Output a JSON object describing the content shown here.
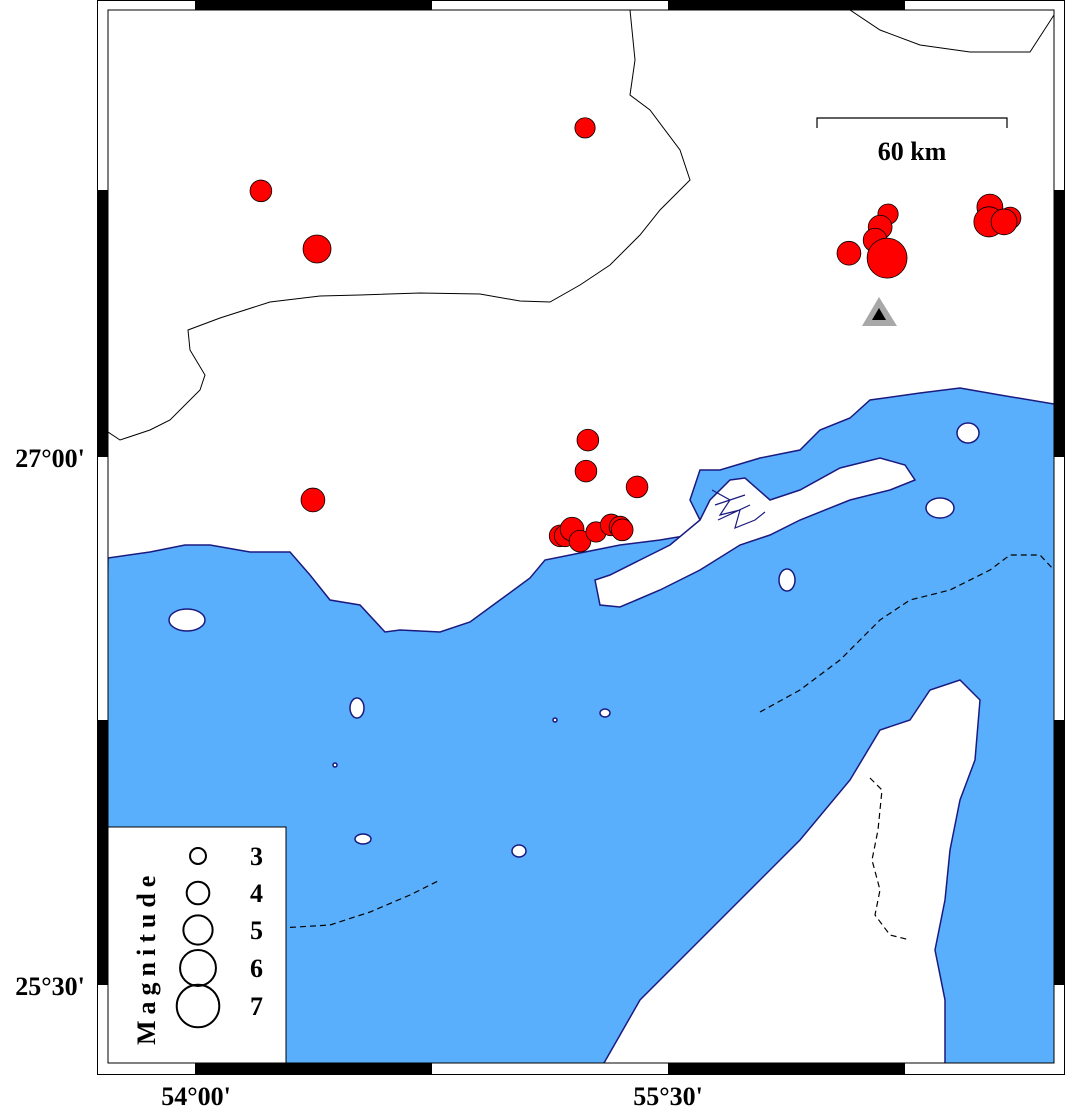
{
  "map": {
    "colors": {
      "water": "#5aaffc",
      "land": "#ffffff",
      "coast": "#1a1a80",
      "event": "#ff0000",
      "station": "#a8a8a8"
    },
    "lat_labels": [
      {
        "lat": 27.0,
        "text": "27°00'"
      },
      {
        "lat": 25.5,
        "text": "25°30'"
      }
    ],
    "lon_labels": [
      {
        "lon": 54.0,
        "text": "54°00'"
      },
      {
        "lon": 55.5,
        "text": "55°30'"
      }
    ],
    "scale_bar": {
      "label": "60 km"
    },
    "station": {
      "lon": 56.221,
      "lat": 27.403,
      "icon": "triangle-icon"
    },
    "events": [
      {
        "lon": 55.237,
        "lat": 27.935,
        "mag": 2.9
      },
      {
        "lon": 54.209,
        "lat": 27.756,
        "mag": 3.1
      },
      {
        "lon": 54.387,
        "lat": 27.591,
        "mag": 4.0
      },
      {
        "lon": 56.198,
        "lat": 27.69,
        "mag": 2.9
      },
      {
        "lon": 56.173,
        "lat": 27.653,
        "mag": 3.4
      },
      {
        "lon": 56.157,
        "lat": 27.616,
        "mag": 3.4
      },
      {
        "lon": 56.074,
        "lat": 27.579,
        "mag": 3.4
      },
      {
        "lon": 56.195,
        "lat": 27.565,
        "mag": 5.7
      },
      {
        "lon": 56.521,
        "lat": 27.71,
        "mag": 3.7
      },
      {
        "lon": 56.518,
        "lat": 27.668,
        "mag": 4.3
      },
      {
        "lon": 56.585,
        "lat": 27.679,
        "mag": 3.1
      },
      {
        "lon": 56.566,
        "lat": 27.668,
        "mag": 3.7
      },
      {
        "lon": 55.246,
        "lat": 27.048,
        "mag": 3.1
      },
      {
        "lon": 55.24,
        "lat": 26.96,
        "mag": 3.1
      },
      {
        "lon": 55.402,
        "lat": 26.915,
        "mag": 3.1
      },
      {
        "lon": 54.374,
        "lat": 26.878,
        "mag": 3.4
      },
      {
        "lon": 55.158,
        "lat": 26.776,
        "mag": 3.1
      },
      {
        "lon": 55.174,
        "lat": 26.776,
        "mag": 3.1
      },
      {
        "lon": 55.196,
        "lat": 26.795,
        "mag": 3.4
      },
      {
        "lon": 55.221,
        "lat": 26.761,
        "mag": 3.1
      },
      {
        "lon": 55.272,
        "lat": 26.787,
        "mag": 2.9
      },
      {
        "lon": 55.32,
        "lat": 26.807,
        "mag": 3.1
      },
      {
        "lon": 55.348,
        "lat": 26.801,
        "mag": 3.1
      },
      {
        "lon": 55.355,
        "lat": 26.793,
        "mag": 3.1
      }
    ]
  },
  "legend": {
    "title": "Magnitude",
    "items": [
      {
        "mag": 3,
        "label": "3"
      },
      {
        "mag": 4,
        "label": "4"
      },
      {
        "mag": 5,
        "label": "5"
      },
      {
        "mag": 6,
        "label": "6"
      },
      {
        "mag": 7,
        "label": "7"
      }
    ]
  }
}
